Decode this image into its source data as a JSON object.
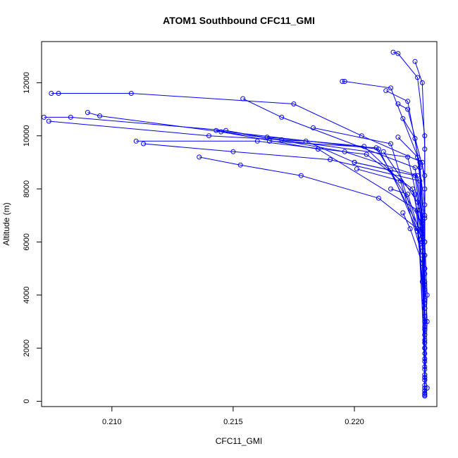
{
  "chart_data": {
    "type": "line",
    "title": "ATOM1 Southbound CFC11_GMI",
    "xlabel": "CFC11_GMI",
    "ylabel": "Altitude (m)",
    "xlim": [
      0.2071,
      0.2234
    ],
    "ylim": [
      -200,
      13550
    ],
    "x_ticks": [
      0.21,
      0.215,
      0.22
    ],
    "x_tick_labels": [
      "0.210",
      "0.215",
      "0.220"
    ],
    "y_ticks": [
      0,
      2000,
      4000,
      6000,
      8000,
      10000,
      12000
    ],
    "y_tick_labels": [
      "0",
      "2000",
      "4000",
      "6000",
      "8000",
      "10000",
      "12000"
    ],
    "grid": false,
    "legend": "none",
    "marker": "open-circle",
    "color": "#0000ff",
    "series": [
      {
        "x": [
          0.2075,
          0.2078,
          0.2108,
          0.2175,
          0.2203,
          0.2228,
          0.2229,
          0.2229,
          0.223,
          0.2229,
          0.2229,
          0.223,
          0.2229,
          0.2229
        ],
        "y": [
          11600,
          11600,
          11600,
          11200,
          10000,
          9000,
          8000,
          6000,
          4000,
          2000,
          1000,
          500,
          300,
          200
        ]
      },
      {
        "x": [
          0.2072,
          0.2083,
          0.2147,
          0.2196,
          0.2226,
          0.2228,
          0.2229,
          0.2229,
          0.2229,
          0.2229,
          0.2229
        ],
        "y": [
          10700,
          10700,
          10200,
          9400,
          8500,
          7000,
          5500,
          3500,
          2000,
          800,
          200
        ]
      },
      {
        "x": [
          0.2074,
          0.214,
          0.218,
          0.22,
          0.2225,
          0.2228,
          0.2229,
          0.2229,
          0.2229
        ],
        "y": [
          10550,
          10000,
          9800,
          9000,
          8500,
          6500,
          4500,
          2500,
          400
        ]
      },
      {
        "x": [
          0.209,
          0.2095,
          0.217,
          0.2222,
          0.2227,
          0.2229,
          0.223,
          0.2229
        ],
        "y": [
          10880,
          10750,
          9850,
          9200,
          7200,
          5000,
          3000,
          600
        ]
      },
      {
        "x": [
          0.211,
          0.216,
          0.2205,
          0.2224,
          0.2228,
          0.2229,
          0.2229
        ],
        "y": [
          9800,
          9800,
          9300,
          8000,
          6200,
          3800,
          1200
        ]
      },
      {
        "x": [
          0.2113,
          0.215,
          0.219,
          0.2227,
          0.2228,
          0.2229,
          0.2229
        ],
        "y": [
          9700,
          9400,
          9100,
          8300,
          5800,
          3000,
          800
        ]
      },
      {
        "x": [
          0.2136,
          0.2153,
          0.2178,
          0.221,
          0.2226,
          0.2228,
          0.2229,
          0.2229
        ],
        "y": [
          9200,
          8900,
          8500,
          7650,
          6500,
          4500,
          2200,
          250
        ]
      },
      {
        "x": [
          0.2154,
          0.217,
          0.2225,
          0.2228,
          0.2229,
          0.2229
        ],
        "y": [
          11400,
          10700,
          8800,
          6800,
          4200,
          1500
        ]
      },
      {
        "x": [
          0.2195,
          0.2196,
          0.2215,
          0.2227,
          0.2229,
          0.2229,
          0.2229
        ],
        "y": [
          12050,
          12050,
          11800,
          9000,
          6000,
          3000,
          500
        ]
      },
      {
        "x": [
          0.2216,
          0.2218,
          0.2226,
          0.2229,
          0.2229,
          0.2229,
          0.2229
        ],
        "y": [
          13150,
          13100,
          12200,
          10000,
          7000,
          3500,
          300
        ]
      },
      {
        "x": [
          0.2225,
          0.2228,
          0.2229,
          0.2229,
          0.2229
        ],
        "y": [
          12800,
          12000,
          9500,
          5500,
          1800
        ]
      },
      {
        "x": [
          0.2218,
          0.2222,
          0.2229,
          0.2229,
          0.2229
        ],
        "y": [
          11200,
          11000,
          8500,
          5000,
          900
        ]
      },
      {
        "x": [
          0.2215,
          0.2222,
          0.2228,
          0.2229,
          0.2229
        ],
        "y": [
          8000,
          7800,
          6000,
          3200,
          400
        ]
      },
      {
        "x": [
          0.2201,
          0.2219,
          0.2228,
          0.2229
        ],
        "y": [
          8750,
          8300,
          5500,
          2500
        ]
      },
      {
        "x": [
          0.2212,
          0.2226,
          0.2229,
          0.2229
        ],
        "y": [
          9400,
          7500,
          4800,
          1000
        ]
      },
      {
        "x": [
          0.2164,
          0.2204,
          0.2225,
          0.2229
        ],
        "y": [
          9950,
          9600,
          7800,
          3500
        ]
      },
      {
        "x": [
          0.2165,
          0.2209,
          0.2228,
          0.2229
        ],
        "y": [
          9800,
          9550,
          6700,
          2800
        ]
      },
      {
        "x": [
          0.2143,
          0.221,
          0.2228,
          0.2229
        ],
        "y": [
          10200,
          9500,
          6300,
          2000
        ]
      },
      {
        "x": [
          0.2145,
          0.2185,
          0.2226,
          0.2229
        ],
        "y": [
          10150,
          9500,
          7200,
          1600
        ]
      },
      {
        "x": [
          0.2183,
          0.2215,
          0.2227,
          0.2229
        ],
        "y": [
          10300,
          9700,
          6100,
          900
        ]
      },
      {
        "x": [
          0.2213,
          0.2222,
          0.2227,
          0.2229
        ],
        "y": [
          11700,
          11300,
          8800,
          4400
        ]
      },
      {
        "x": [
          0.222,
          0.2225,
          0.2229,
          0.2229
        ],
        "y": [
          10650,
          9900,
          7400,
          2700
        ]
      },
      {
        "x": [
          0.2218,
          0.2226,
          0.2229,
          0.2229
        ],
        "y": [
          9950,
          9200,
          6900,
          1300
        ]
      },
      {
        "x": [
          0.22,
          0.2215,
          0.2226,
          0.2229
        ],
        "y": [
          9000,
          8700,
          6400,
          3700
        ]
      },
      {
        "x": [
          0.222,
          0.2223,
          0.2228,
          0.2229
        ],
        "y": [
          7100,
          6500,
          5200,
          2300
        ]
      }
    ]
  }
}
